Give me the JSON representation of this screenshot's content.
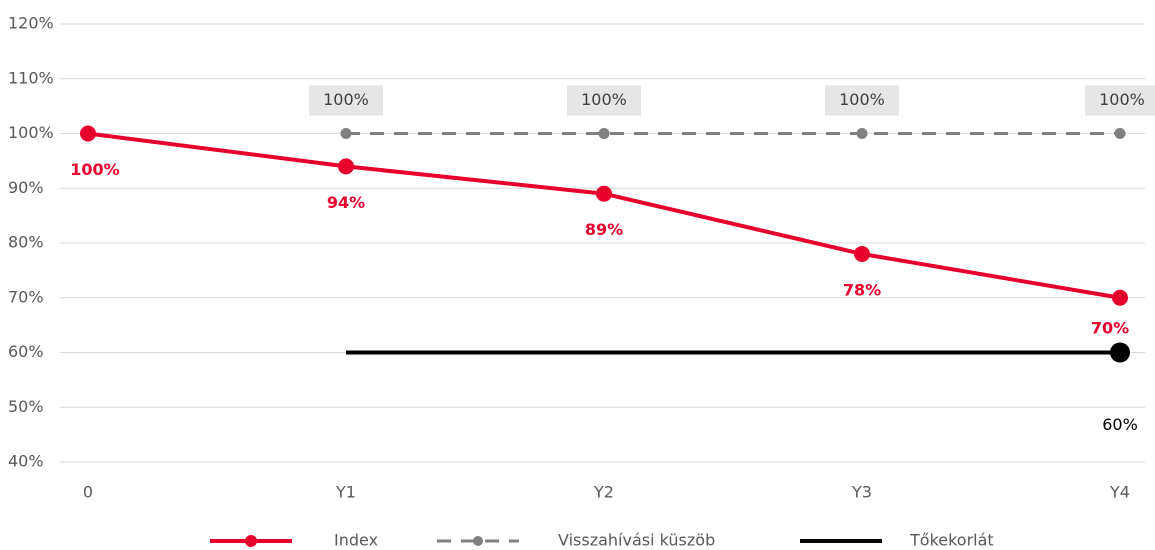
{
  "chart_data": {
    "type": "line",
    "categories": [
      "0",
      "Y1",
      "Y2",
      "Y3",
      "Y4"
    ],
    "series": [
      {
        "name": "Index",
        "color": "#e8002d",
        "style": "solid",
        "marker": "all",
        "values": [
          100,
          94,
          89,
          78,
          70
        ],
        "value_labels": [
          "100%",
          "94%",
          "89%",
          "78%",
          "70%"
        ]
      },
      {
        "name": "Visszahívási küszöb",
        "color": "#808080",
        "style": "dashed",
        "marker": "all",
        "values": [
          null,
          100,
          100,
          100,
          100
        ],
        "value_labels": [
          null,
          "100%",
          "100%",
          "100%",
          "100%"
        ]
      },
      {
        "name": "Tőkekorlát",
        "color": "#000000",
        "style": "solid",
        "marker": "last",
        "values": [
          null,
          60,
          60,
          60,
          60
        ],
        "value_labels": [
          null,
          null,
          null,
          null,
          "60%"
        ]
      }
    ],
    "ylim": [
      40,
      120
    ],
    "yticks": [
      {
        "value": 40,
        "label": "40%"
      },
      {
        "value": 50,
        "label": "50%"
      },
      {
        "value": 60,
        "label": "60%"
      },
      {
        "value": 70,
        "label": "70%"
      },
      {
        "value": 80,
        "label": "80%"
      },
      {
        "value": 90,
        "label": "90%"
      },
      {
        "value": 100,
        "label": "100%"
      },
      {
        "value": 110,
        "label": "110%"
      },
      {
        "value": 120,
        "label": "120%"
      }
    ],
    "grid": true,
    "legend": "bottom"
  }
}
